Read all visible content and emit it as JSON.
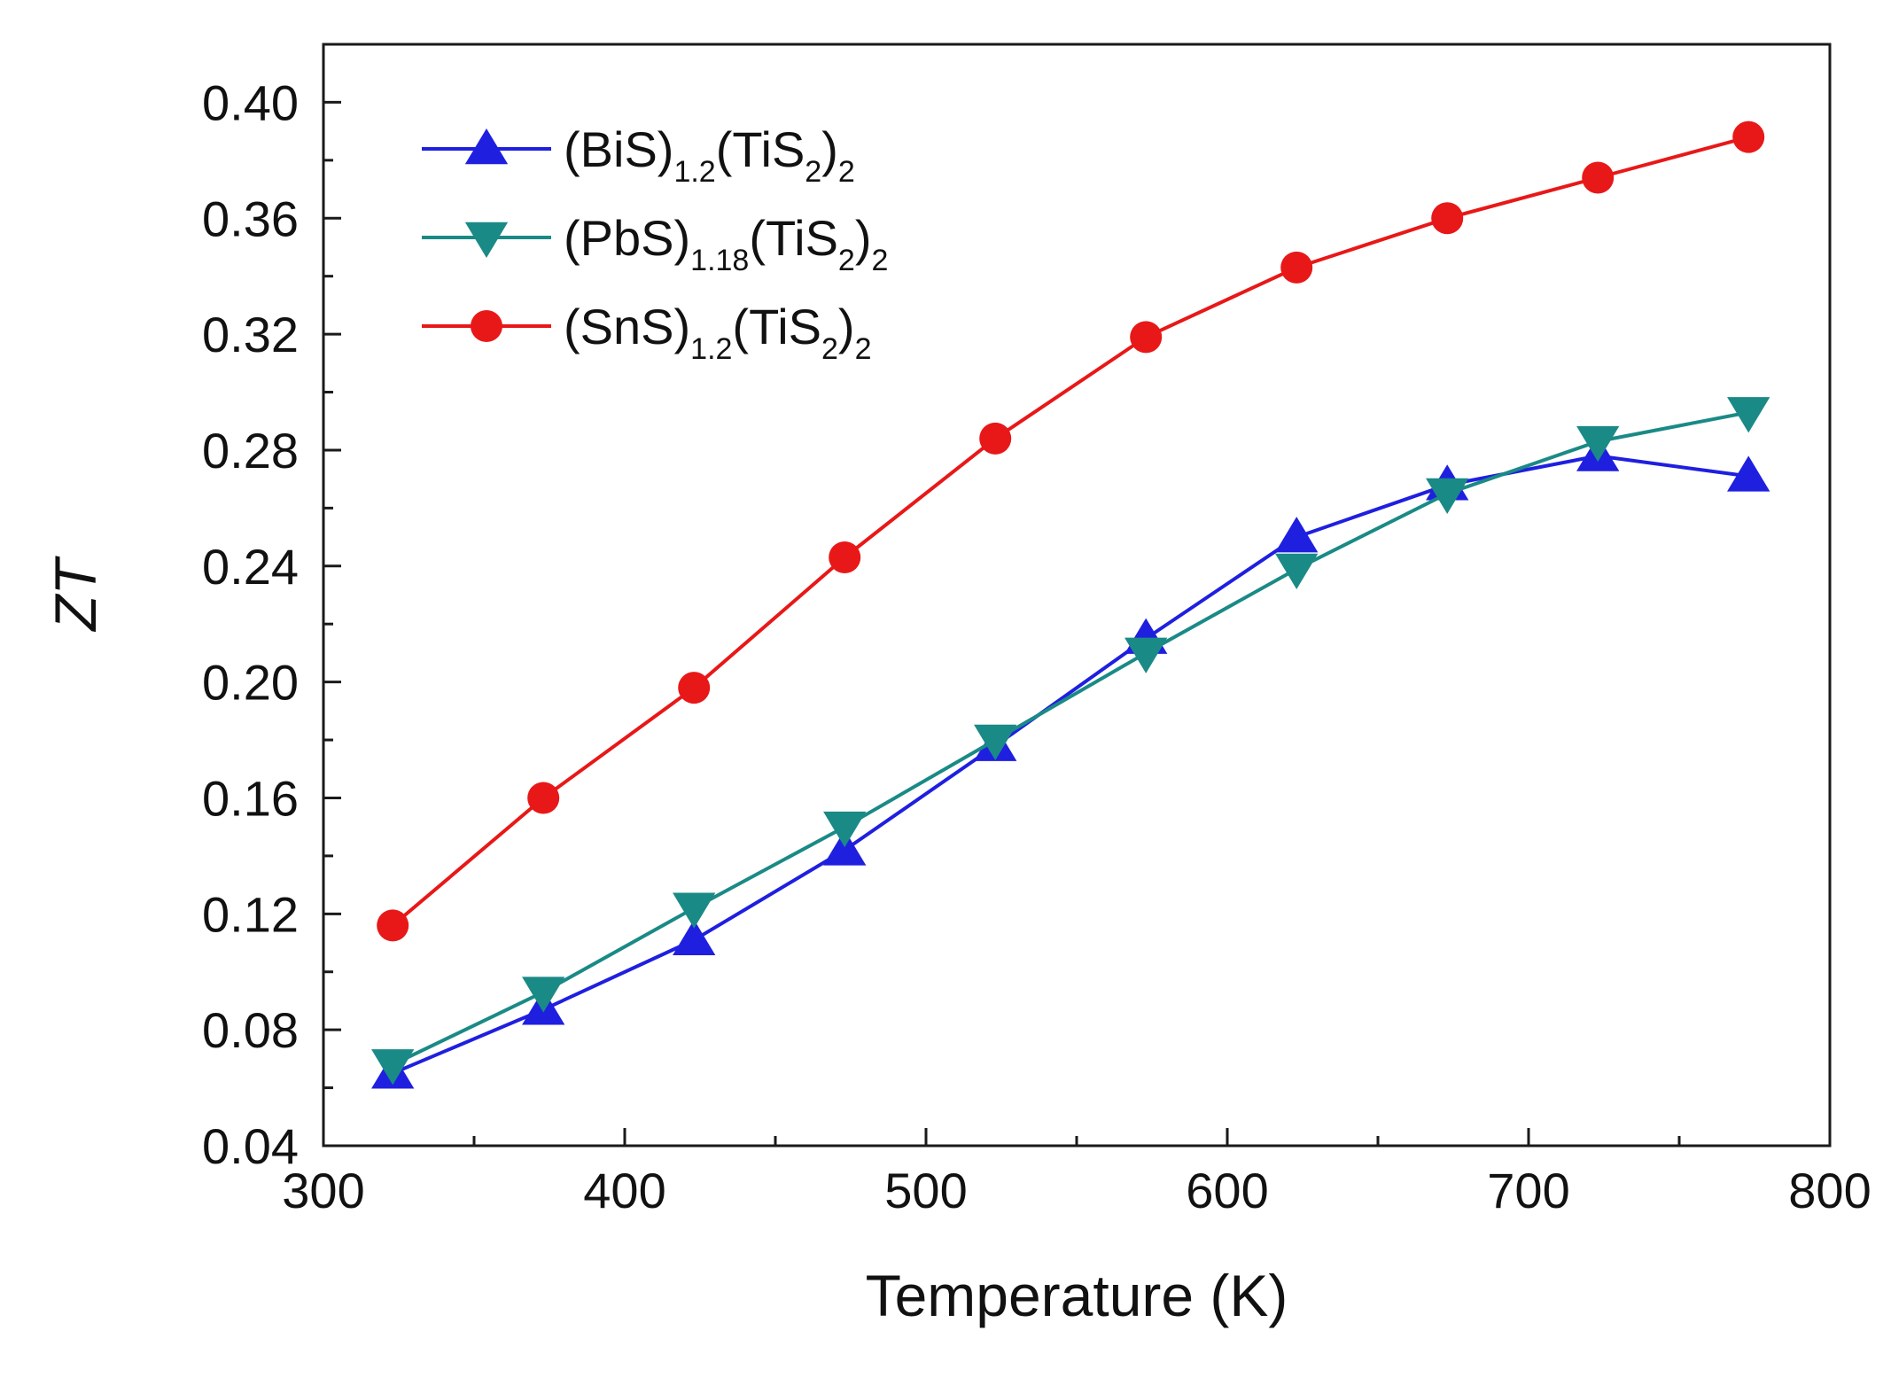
{
  "chart_data": {
    "type": "line",
    "title": "",
    "xlabel": "Temperature (K)",
    "ylabel": "ZT",
    "xlim": [
      300,
      800
    ],
    "ylim": [
      0.04,
      0.42
    ],
    "xticks": [
      300,
      400,
      500,
      600,
      700,
      800
    ],
    "xtick_labels": [
      "300",
      "400",
      "500",
      "600",
      "700",
      "800"
    ],
    "x_minor_ticks": [
      350,
      450,
      550,
      650,
      750
    ],
    "yticks": [
      0.04,
      0.08,
      0.12,
      0.16,
      0.2,
      0.24,
      0.28,
      0.32,
      0.36,
      0.4
    ],
    "ytick_labels": [
      "0.04",
      "0.08",
      "0.12",
      "0.16",
      "0.20",
      "0.24",
      "0.28",
      "0.32",
      "0.36",
      "0.40"
    ],
    "y_minor_ticks": [
      0.06,
      0.1,
      0.14,
      0.18,
      0.22,
      0.26,
      0.3,
      0.34,
      0.38
    ],
    "grid": false,
    "legend_position": "top-left",
    "x": [
      323,
      373,
      423,
      473,
      523,
      573,
      623,
      673,
      723,
      773
    ],
    "series": [
      {
        "name": "(BiS)1.2(TiS2)2",
        "label_parts": [
          {
            "t": "(BiS)",
            "sub": false
          },
          {
            "t": "1.2",
            "sub": true
          },
          {
            "t": "(TiS",
            "sub": false
          },
          {
            "t": "2",
            "sub": true
          },
          {
            "t": ")",
            "sub": false
          },
          {
            "t": "2",
            "sub": true
          }
        ],
        "color": "#1f1fe0",
        "marker": "triangle-up",
        "values": [
          0.065,
          0.087,
          0.111,
          0.142,
          0.178,
          0.215,
          0.25,
          0.268,
          0.278,
          0.271
        ]
      },
      {
        "name": "(PbS)1.18(TiS2)2",
        "label_parts": [
          {
            "t": "(PbS)",
            "sub": false
          },
          {
            "t": "1.18",
            "sub": true
          },
          {
            "t": "(TiS",
            "sub": false
          },
          {
            "t": "2",
            "sub": true
          },
          {
            "t": ")",
            "sub": false
          },
          {
            "t": "2",
            "sub": true
          }
        ],
        "color": "#1a8a86",
        "marker": "triangle-down",
        "values": [
          0.068,
          0.093,
          0.122,
          0.15,
          0.18,
          0.21,
          0.239,
          0.265,
          0.283,
          0.293
        ]
      },
      {
        "name": "(SnS)1.2(TiS2)2",
        "label_parts": [
          {
            "t": "(SnS)",
            "sub": false
          },
          {
            "t": "1.2",
            "sub": true
          },
          {
            "t": "(TiS",
            "sub": false
          },
          {
            "t": "2",
            "sub": true
          },
          {
            "t": ")",
            "sub": false
          },
          {
            "t": "2",
            "sub": true
          }
        ],
        "color": "#e81818",
        "marker": "circle",
        "values": [
          0.116,
          0.16,
          0.198,
          0.243,
          0.284,
          0.319,
          0.343,
          0.36,
          0.374,
          0.388
        ]
      }
    ]
  }
}
